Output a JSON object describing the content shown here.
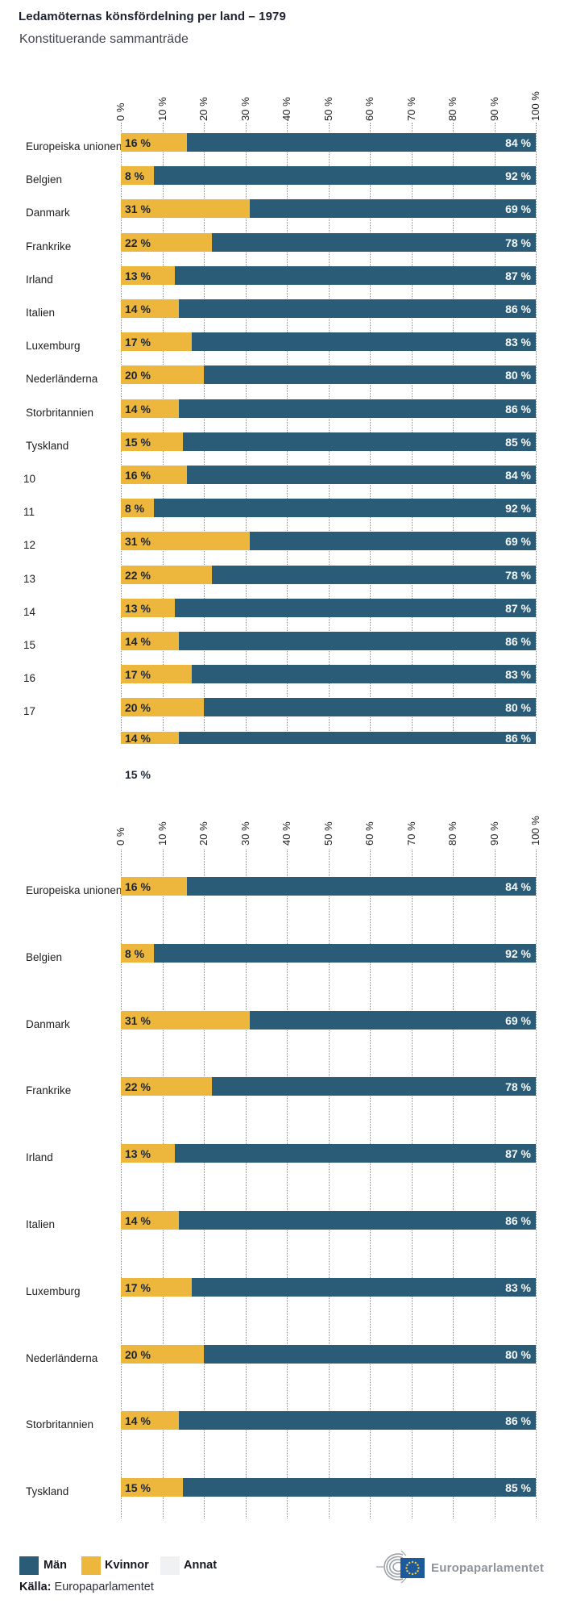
{
  "header": {
    "title": "Ledamöternas könsfördelning per land – 1979",
    "subtitle": "Konstituerande sammanträde"
  },
  "axis": {
    "ticks": [
      "0 %",
      "10 %",
      "20 %",
      "30 %",
      "40 %",
      "50 %",
      "60 %",
      "70 %",
      "80 %",
      "90 %",
      "100 %"
    ],
    "xlim": [
      0,
      100
    ]
  },
  "chart_data": [
    {
      "type": "bar",
      "orientation": "horizontal",
      "stacked": true,
      "series_names": [
        "Kvinnor",
        "Män"
      ],
      "xlim": [
        0,
        100
      ],
      "grid": true,
      "rows": [
        {
          "label": "Europeiska unionen",
          "kvinnor": 16,
          "man": 84
        },
        {
          "label": "Belgien",
          "kvinnor": 8,
          "man": 92
        },
        {
          "label": "Danmark",
          "kvinnor": 31,
          "man": 69
        },
        {
          "label": "Frankrike",
          "kvinnor": 22,
          "man": 78
        },
        {
          "label": "Irland",
          "kvinnor": 13,
          "man": 87
        },
        {
          "label": "Italien",
          "kvinnor": 14,
          "man": 86
        },
        {
          "label": "Luxemburg",
          "kvinnor": 17,
          "man": 83
        },
        {
          "label": "Nederländerna",
          "kvinnor": 20,
          "man": 80
        },
        {
          "label": "Storbritannien",
          "kvinnor": 14,
          "man": 86
        },
        {
          "label": "Tyskland",
          "kvinnor": 15,
          "man": 85
        },
        {
          "label": "10",
          "kvinnor": 16,
          "man": 84
        },
        {
          "label": "11",
          "kvinnor": 8,
          "man": 92
        },
        {
          "label": "12",
          "kvinnor": 31,
          "man": 69
        },
        {
          "label": "13",
          "kvinnor": 22,
          "man": 78
        },
        {
          "label": "14",
          "kvinnor": 13,
          "man": 87
        },
        {
          "label": "15",
          "kvinnor": 14,
          "man": 86
        },
        {
          "label": "16",
          "kvinnor": 17,
          "man": 83
        },
        {
          "label": "17",
          "kvinnor": 20,
          "man": 80
        },
        {
          "label": "",
          "kvinnor": 14,
          "man": 86,
          "clipped": true
        },
        {
          "label": "",
          "kvinnor": 15,
          "man": null,
          "label_only": true
        }
      ]
    },
    {
      "type": "bar",
      "orientation": "horizontal",
      "stacked": true,
      "series_names": [
        "Kvinnor",
        "Män"
      ],
      "xlim": [
        0,
        100
      ],
      "grid": true,
      "rows": [
        {
          "label": "Europeiska unionen",
          "kvinnor": 16,
          "man": 84
        },
        {
          "label": "Belgien",
          "kvinnor": 8,
          "man": 92
        },
        {
          "label": "Danmark",
          "kvinnor": 31,
          "man": 69
        },
        {
          "label": "Frankrike",
          "kvinnor": 22,
          "man": 78
        },
        {
          "label": "Irland",
          "kvinnor": 13,
          "man": 87
        },
        {
          "label": "Italien",
          "kvinnor": 14,
          "man": 86
        },
        {
          "label": "Luxemburg",
          "kvinnor": 17,
          "man": 83
        },
        {
          "label": "Nederländerna",
          "kvinnor": 20,
          "man": 80
        },
        {
          "label": "Storbritannien",
          "kvinnor": 14,
          "man": 86
        },
        {
          "label": "Tyskland",
          "kvinnor": 15,
          "man": 85
        }
      ]
    }
  ],
  "legend": {
    "items": [
      {
        "label": "Män",
        "color": "#2A5B77"
      },
      {
        "label": "Kvinnor",
        "color": "#EDB63C"
      },
      {
        "label": "Annat",
        "color": "#EFF1F3"
      }
    ]
  },
  "source": {
    "label": "Källa:",
    "value": " Europaparlamentet"
  },
  "logo": {
    "text": "Europaparlamentet"
  },
  "colors": {
    "man": "#2A5B77",
    "kvinnor": "#EDB63C",
    "annat": "#EFF1F3",
    "grid": "#8f8f8f"
  },
  "value_suffix": " %"
}
